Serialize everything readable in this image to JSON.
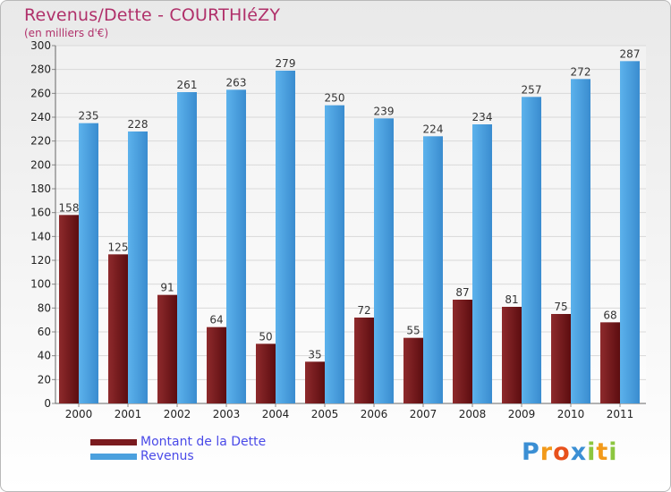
{
  "chart_data": {
    "type": "bar",
    "title": "Revenus/Dette - COURTHIéZY",
    "subtitle": "(en milliers d'€)",
    "categories": [
      "2000",
      "2001",
      "2002",
      "2003",
      "2004",
      "2005",
      "2006",
      "2007",
      "2008",
      "2009",
      "2010",
      "2011"
    ],
    "series": [
      {
        "name": "Montant de la Dette",
        "color": "#7a1a1e",
        "values": [
          158,
          125,
          91,
          64,
          50,
          35,
          72,
          55,
          87,
          81,
          75,
          68
        ]
      },
      {
        "name": "Revenus",
        "color": "#4aa0de",
        "values": [
          235,
          228,
          261,
          263,
          279,
          250,
          239,
          224,
          234,
          257,
          272,
          287
        ]
      }
    ],
    "ylim": [
      0,
      300
    ],
    "yticks": [
      0,
      20,
      40,
      60,
      80,
      100,
      120,
      140,
      160,
      180,
      200,
      220,
      240,
      260,
      280,
      300
    ],
    "grid": true,
    "legend_position": "bottom-left"
  },
  "logo": {
    "letters": [
      "P",
      "r",
      "o",
      "x",
      "i",
      "t",
      "i"
    ],
    "colors": [
      "#3b8fd4",
      "#f29a1a",
      "#e8511c",
      "#3b8fd4",
      "#8cc63f",
      "#f29a1a",
      "#8cc63f"
    ]
  }
}
